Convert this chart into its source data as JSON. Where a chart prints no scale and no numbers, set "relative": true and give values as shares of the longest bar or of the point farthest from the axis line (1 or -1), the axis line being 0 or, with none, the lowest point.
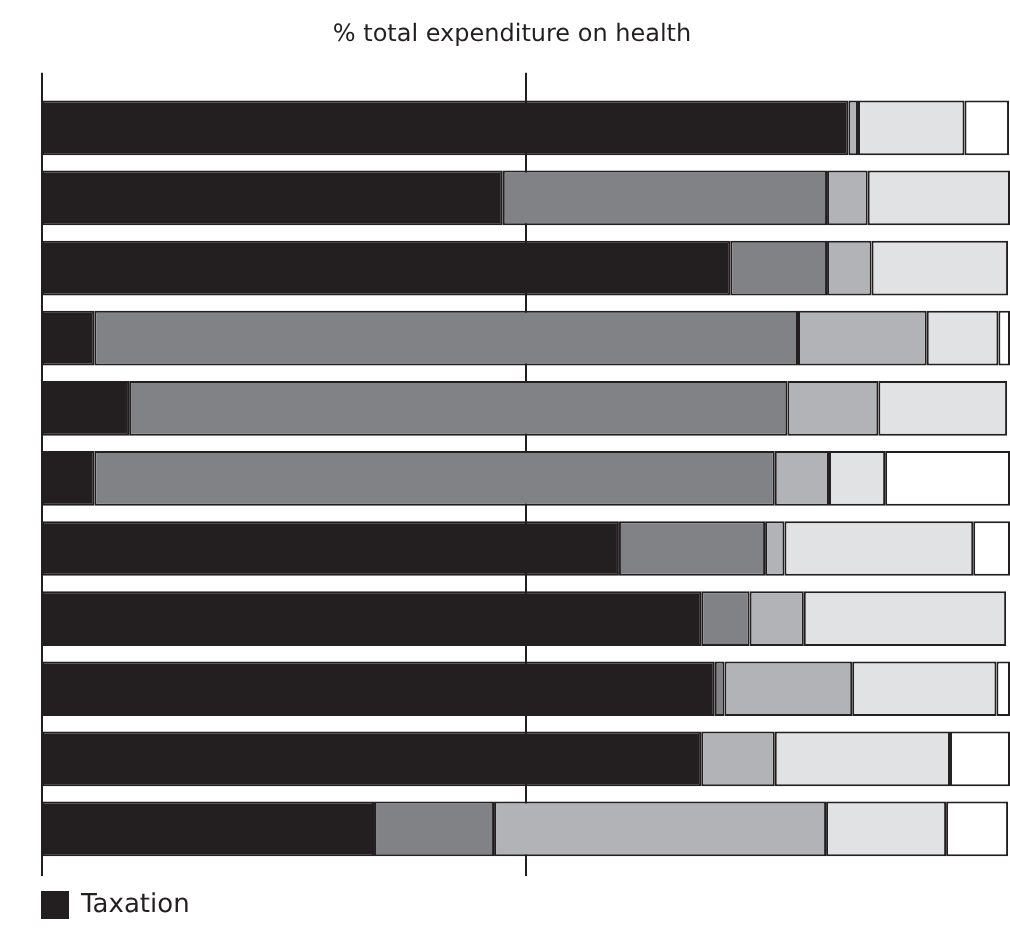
{
  "chart_data": {
    "type": "bar",
    "orientation": "horizontal",
    "stacked": true,
    "relative": true,
    "title": "% total expenditure on health",
    "categories": [
      null,
      null,
      null,
      null,
      null,
      null,
      null,
      null,
      null,
      null,
      null
    ],
    "series": [
      {
        "name": "Taxation",
        "color": "#231f20",
        "values": [
          0.833,
          0.476,
          0.711,
          0.054,
          0.09,
          0.054,
          0.596,
          0.681,
          0.695,
          0.681,
          0.343
        ]
      },
      {
        "color": "#808285",
        "values": [
          0,
          0.335,
          0.1,
          0.727,
          0.68,
          0.703,
          0.151,
          0.05,
          0.01,
          0,
          0.124
        ]
      },
      {
        "color": "#b1b3b6",
        "values": [
          0.01,
          0.042,
          0.046,
          0.133,
          0.094,
          0.056,
          0.02,
          0.056,
          0.132,
          0.076,
          0.343
        ]
      },
      {
        "color": "#e1e2e3",
        "values": [
          0.11,
          0.147,
          0.141,
          0.074,
          0.133,
          0.058,
          0.195,
          0.209,
          0.149,
          0.181,
          0.124
        ]
      },
      {
        "color": "#ffffff",
        "values": [
          0.046,
          0,
          0,
          0.012,
          0,
          0.129,
          0.038,
          0,
          0.014,
          0.062,
          0.064
        ]
      }
    ],
    "ref_lines": [
      {
        "axis": "x",
        "value": 0.5,
        "color": "#231f20"
      }
    ],
    "legend": "bottom left"
  }
}
